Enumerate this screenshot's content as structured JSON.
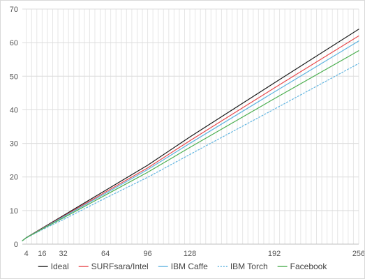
{
  "chart_data": {
    "type": "line",
    "title": "",
    "xlabel": "",
    "ylabel": "",
    "xlim": [
      1,
      256
    ],
    "ylim": [
      0,
      70
    ],
    "x_ticks": [
      4,
      16,
      32,
      64,
      96,
      128,
      192,
      256
    ],
    "x_tick_labels": [
      "4",
      "16",
      "32",
      "64",
      "96",
      "128",
      "192",
      "256"
    ],
    "y_ticks": [
      0,
      10,
      20,
      30,
      40,
      50,
      60,
      70
    ],
    "y_tick_labels": [
      "0",
      "10",
      "20",
      "30",
      "40",
      "50",
      "60",
      "70"
    ],
    "grid": true,
    "legend_position": "bottom",
    "series": [
      {
        "name": "Ideal",
        "color": "#1a1a1a",
        "dash": "solid",
        "x": [
          1,
          4,
          16,
          32,
          64,
          96,
          128,
          192,
          256
        ],
        "values": [
          1,
          1.95,
          4.74,
          8.5,
          16,
          23.5,
          31.9,
          48,
          64
        ]
      },
      {
        "name": "SURFsara/Intel",
        "color": "#e8484b",
        "dash": "solid",
        "x": [
          1,
          4,
          16,
          32,
          64,
          96,
          128,
          192,
          256
        ],
        "values": [
          1,
          1.93,
          4.62,
          8.25,
          15.5,
          22.7,
          30.8,
          46.5,
          62
        ]
      },
      {
        "name": "IBM Caffe",
        "color": "#5fb4e0",
        "dash": "solid",
        "x": [
          1,
          4,
          16,
          32,
          64,
          96,
          128,
          192,
          256
        ],
        "values": [
          1,
          1.92,
          4.55,
          8.1,
          15.1,
          22.2,
          30,
          45.3,
          60.5
        ]
      },
      {
        "name": "IBM Torch",
        "color": "#5fb4e0",
        "dash": "dotted",
        "x": [
          1,
          4,
          16,
          32,
          64,
          96,
          128,
          192,
          256
        ],
        "values": [
          1,
          1.85,
          4.3,
          7.3,
          13.7,
          19.9,
          26.7,
          40.2,
          53.8
        ]
      },
      {
        "name": "Facebook",
        "color": "#4caf50",
        "dash": "solid",
        "x": [
          1,
          4,
          16,
          32,
          64,
          96,
          128,
          192,
          256
        ],
        "values": [
          1,
          1.9,
          4.5,
          7.8,
          14.6,
          21.4,
          28.8,
          43.3,
          57.6
        ]
      }
    ]
  }
}
